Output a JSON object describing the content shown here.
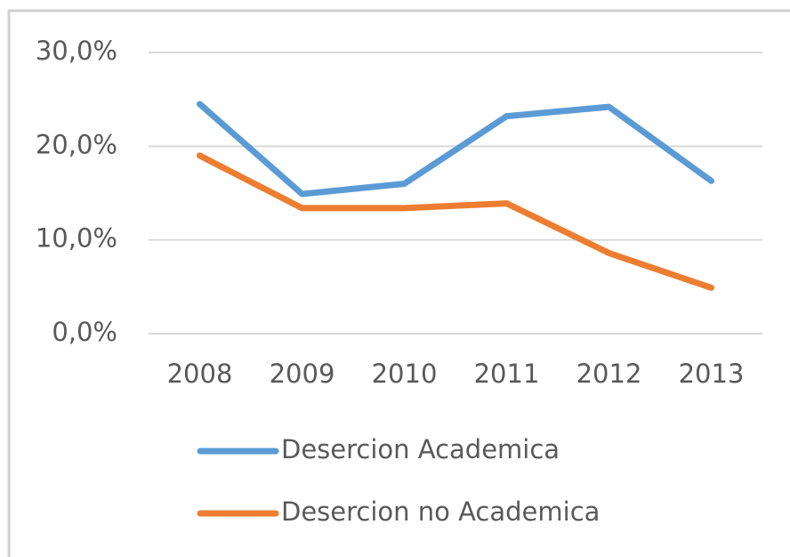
{
  "chart_data": {
    "type": "line",
    "categories": [
      "2008",
      "2009",
      "2010",
      "2011",
      "2012",
      "2013"
    ],
    "series": [
      {
        "name": "Desercion Academica",
        "color": "#5b9bd5",
        "values": [
          24.5,
          14.9,
          16.0,
          23.2,
          24.2,
          16.3
        ]
      },
      {
        "name": "Desercion no Academica",
        "color": "#ed7d31",
        "values": [
          19.0,
          13.4,
          13.4,
          13.9,
          8.6,
          4.9
        ]
      }
    ],
    "ylim": [
      0,
      30
    ],
    "yticks": [
      {
        "value": 0,
        "label": "0,0%"
      },
      {
        "value": 10,
        "label": "10,0%"
      },
      {
        "value": 20,
        "label": "20,0%"
      },
      {
        "value": 30,
        "label": "30,0%"
      }
    ],
    "grid": true,
    "legend": "bottom"
  }
}
